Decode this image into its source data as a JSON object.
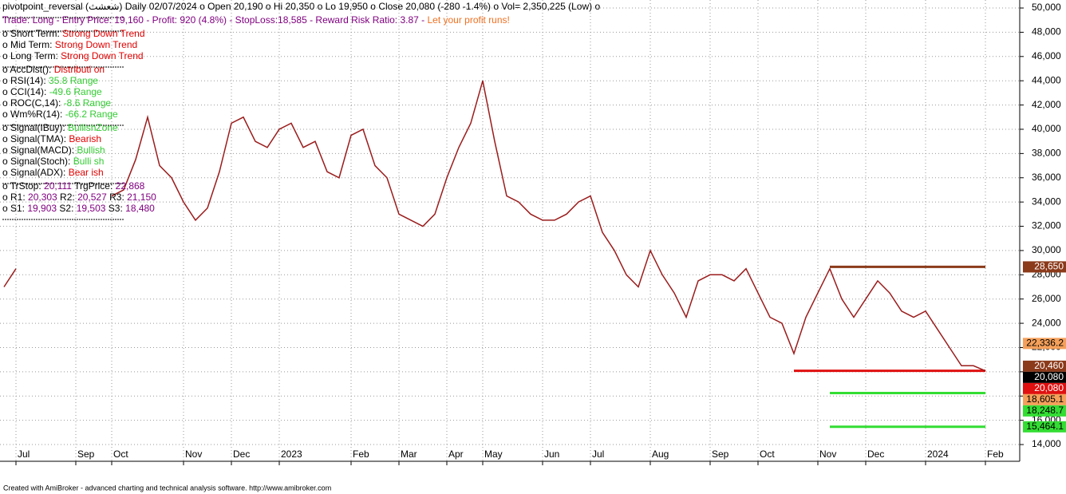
{
  "chart_data": {
    "type": "line",
    "categories": [
      null,
      "Jul",
      null,
      null,
      null,
      null,
      "Sep",
      null,
      null,
      "Oct",
      null,
      null,
      null,
      null,
      null,
      "Nov",
      null,
      null,
      null,
      "Dec",
      null,
      null,
      null,
      "2023",
      null,
      null,
      null,
      null,
      null,
      "Feb",
      null,
      null,
      null,
      "Mar",
      null,
      null,
      null,
      "Apr",
      null,
      null,
      "May",
      null,
      null,
      null,
      null,
      "Jun",
      null,
      null,
      null,
      "Jul",
      null,
      null,
      null,
      null,
      "Aug",
      null,
      null,
      null,
      null,
      "Sep",
      null,
      null,
      null,
      "Oct",
      null,
      null,
      null,
      null,
      "Nov",
      null,
      null,
      null,
      "Dec",
      null,
      null,
      null,
      null,
      "2024",
      null,
      null,
      null,
      null,
      "Feb"
    ],
    "series": [
      {
        "name": "Close",
        "color": "#9b1c1c",
        "values": [
          27000,
          28500,
          null,
          null,
          null,
          null,
          null,
          null,
          null,
          34500,
          35000,
          37500,
          41000,
          37000,
          36000,
          34000,
          32500,
          33500,
          36500,
          40500,
          41000,
          39000,
          38500,
          40000,
          40500,
          38500,
          39000,
          36500,
          36000,
          39500,
          40000,
          37000,
          36000,
          33000,
          32500,
          32000,
          33000,
          36000,
          38500,
          40500,
          44000,
          39000,
          34500,
          34000,
          33000,
          32500,
          32500,
          33000,
          34000,
          34500,
          31500,
          30000,
          28000,
          27000,
          30000,
          28000,
          26500,
          24500,
          27500,
          28000,
          28000,
          27500,
          28500,
          26500,
          24500,
          24000,
          21500,
          24500,
          26500,
          28500,
          26000,
          24500,
          26000,
          27500,
          26500,
          25000,
          24500,
          25000,
          23500,
          22000,
          20500,
          20500,
          20080
        ]
      }
    ],
    "ylim": [
      12620,
      50660
    ],
    "yticks": [
      {
        "value": 14000,
        "label": "14,000"
      },
      {
        "value": 16000,
        "label": "16,000"
      },
      {
        "value": 18000,
        "label": "18,000"
      },
      {
        "value": 20000,
        "label": "20,000"
      },
      {
        "value": 22000,
        "label": "22,000"
      },
      {
        "value": 24000,
        "label": "24,000"
      },
      {
        "value": 26000,
        "label": "26,000"
      },
      {
        "value": 28000,
        "label": "28,000"
      },
      {
        "value": 30000,
        "label": "30,000"
      },
      {
        "value": 32000,
        "label": "32,000"
      },
      {
        "value": 34000,
        "label": "34,000"
      },
      {
        "value": 36000,
        "label": "36,000"
      },
      {
        "value": 38000,
        "label": "38,000"
      },
      {
        "value": 40000,
        "label": "40,000"
      },
      {
        "value": 42000,
        "label": "42,000"
      },
      {
        "value": 44000,
        "label": "44,000"
      },
      {
        "value": 46000,
        "label": "46,000"
      },
      {
        "value": 48000,
        "label": "48,000"
      },
      {
        "value": 50000,
        "label": "50,000"
      }
    ],
    "grid": true,
    "levels": [
      {
        "value": 28650,
        "label": "28,650",
        "color": "#8b3a1a",
        "text_color": "#ffffff",
        "line_from": 69
      },
      {
        "value": 22336.2,
        "label": "22,336.2",
        "color": "#f5a05a",
        "text_color": "#000000"
      },
      {
        "value": 20460,
        "label": "20,460",
        "color": "#8b3a1a",
        "text_color": "#ffffff"
      },
      {
        "value": 20080,
        "label": "20,080",
        "color": "#000000",
        "text_color": "#ffffff"
      },
      {
        "value": 20080,
        "label": "20,080",
        "color": "#e01010",
        "text_color": "#ffffff",
        "line_from": 66
      },
      {
        "value": 18605.1,
        "label": "18,605.1",
        "color": "#f5a05a",
        "text_color": "#000000"
      },
      {
        "value": 18248.7,
        "label": "18,248.7",
        "color": "#33dd33",
        "text_color": "#000000",
        "line_from": 69
      },
      {
        "value": 15464.1,
        "label": "15,464.1",
        "color": "#33dd33",
        "text_color": "#000000",
        "line_from": 69
      }
    ]
  },
  "overlay": {
    "groups": [
      [
        [
          {
            "text": "pivotpoint_reversal (شعشث)  Daily 02/07/2024  o Open 20,190 o Hi 20,350 o Lo 19,950 o Close 20,080 (-280 -1.4%) o Vol= 2,350,225 (Low) o",
            "color": "#000000"
          }
        ]
      ],
      [
        [
          {
            "text": "Trade: Long - Entry Price: 19,160 - Profit: 920 (4.8%) - StopLoss:18,585 - Reward Risk Ratio: 3.87 - ",
            "color": "#800080"
          },
          {
            "text": "Let your profit runs!",
            "color": "#f07020"
          }
        ]
      ],
      [
        [
          {
            "text": "o Short Term: ",
            "color": "#000000"
          },
          {
            "text": "Strong Down Trend",
            "color": "#e00000"
          }
        ],
        [
          {
            "text": "o Mid Term: ",
            "color": "#000000"
          },
          {
            "text": "Strong Down Trend",
            "color": "#e00000"
          }
        ],
        [
          {
            "text": "o Long Term: ",
            "color": "#000000"
          },
          {
            "text": "Strong Down Trend",
            "color": "#e00000"
          }
        ]
      ],
      [
        [
          {
            "text": "o AccDist(): ",
            "color": "#000000"
          },
          {
            "text": "Distributi on",
            "color": "#e00000"
          }
        ],
        [
          {
            "text": "o RSI(14): ",
            "color": "#000000"
          },
          {
            "text": "35.8 Range",
            "color": "#33cc33"
          }
        ],
        [
          {
            "text": "o CCI(14): ",
            "color": "#000000"
          },
          {
            "text": "-49.6 Range",
            "color": "#33cc33"
          }
        ],
        [
          {
            "text": "o ROC(C,14): ",
            "color": "#000000"
          },
          {
            "text": "-8.6 Range",
            "color": "#33cc33"
          }
        ],
        [
          {
            "text": "o Wm%R(14): ",
            "color": "#000000"
          },
          {
            "text": "-66.2 Range",
            "color": "#33cc33"
          }
        ]
      ],
      [
        [
          {
            "text": "o Signal(IBuy): ",
            "color": "#000000"
          },
          {
            "text": "BullishZone",
            "color": "#33cc33"
          }
        ],
        [
          {
            "text": "o Signal(TMA): ",
            "color": "#000000"
          },
          {
            "text": "Bearish",
            "color": "#e00000"
          }
        ],
        [
          {
            "text": "o Signal(MACD): ",
            "color": "#000000"
          },
          {
            "text": "Bullish",
            "color": "#33cc33"
          }
        ],
        [
          {
            "text": "o Signal(Stoch): ",
            "color": "#000000"
          },
          {
            "text": "Bulli sh",
            "color": "#33cc33"
          }
        ],
        [
          {
            "text": "o Signal(ADX): ",
            "color": "#000000"
          },
          {
            "text": "Bear ish",
            "color": "#e00000"
          }
        ]
      ],
      [
        [
          {
            "text": "o TrStop: ",
            "color": "#000000"
          },
          {
            "text": "20,111",
            "color": "#800080"
          },
          {
            "text": " TrgPrice: ",
            "color": "#000000"
          },
          {
            "text": "22,868",
            "color": "#800080"
          }
        ],
        [
          {
            "text": "o R1: ",
            "color": "#000000"
          },
          {
            "text": "20,303",
            "color": "#800080"
          },
          {
            "text": " R2: ",
            "color": "#000000"
          },
          {
            "text": "20,527",
            "color": "#800080"
          },
          {
            "text": " R3: ",
            "color": "#000000"
          },
          {
            "text": "21,150",
            "color": "#800080"
          }
        ],
        [
          {
            "text": "o S1: ",
            "color": "#000000"
          },
          {
            "text": "19,903",
            "color": "#800080"
          },
          {
            "text": " S2: ",
            "color": "#000000"
          },
          {
            "text": "19,503",
            "color": "#800080"
          },
          {
            "text": " S3: ",
            "color": "#000000"
          },
          {
            "text": "18,480",
            "color": "#800080"
          }
        ]
      ]
    ],
    "footer": "Created with AmiBroker - advanced charting and technical analysis software. http://www.amibroker.com"
  }
}
